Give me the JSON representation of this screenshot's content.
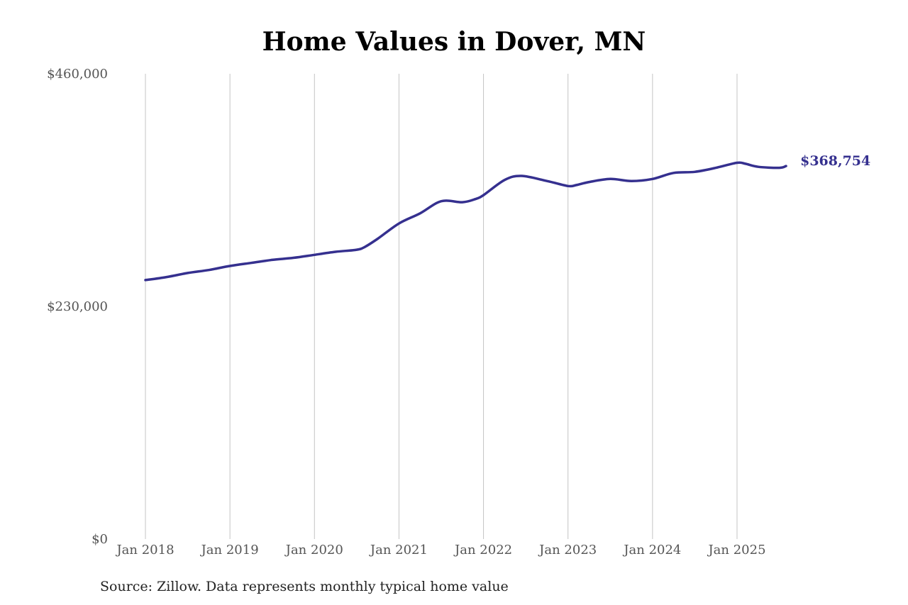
{
  "chart_data": {
    "type": "line",
    "title": "Home Values in Dover, MN",
    "xlabel": "",
    "ylabel": "",
    "ylim": [
      0,
      460000
    ],
    "y_ticks": [
      {
        "value": 0,
        "label": "$0"
      },
      {
        "value": 230000,
        "label": "$230,000"
      },
      {
        "value": 460000,
        "label": "$460,000"
      }
    ],
    "x_ticks": [
      {
        "value": 2018,
        "label": "Jan 2018"
      },
      {
        "value": 2019,
        "label": "Jan 2019"
      },
      {
        "value": 2020,
        "label": "Jan 2020"
      },
      {
        "value": 2021,
        "label": "Jan 2021"
      },
      {
        "value": 2022,
        "label": "Jan 2022"
      },
      {
        "value": 2023,
        "label": "Jan 2023"
      },
      {
        "value": 2024,
        "label": "Jan 2024"
      },
      {
        "value": 2025,
        "label": "Jan 2025"
      }
    ],
    "xlim": [
      2018,
      2025.6
    ],
    "grid": "vertical",
    "line_color": "#35308f",
    "end_label": "$368,754",
    "series": [
      {
        "x": [
          2018.0,
          2018.25,
          2018.5,
          2018.75,
          2019.0,
          2019.25,
          2019.5,
          2019.75,
          2020.0,
          2020.25,
          2020.5,
          2020.6,
          2020.75,
          2021.0,
          2021.25,
          2021.5,
          2021.75,
          2021.9,
          2022.0,
          2022.25,
          2022.45,
          2022.75,
          2023.0,
          2023.1,
          2023.25,
          2023.5,
          2023.75,
          2024.0,
          2024.25,
          2024.5,
          2024.75,
          2025.0,
          2025.1,
          2025.25,
          2025.5,
          2025.58
        ],
        "values": [
          256000,
          259000,
          263000,
          266000,
          270000,
          273000,
          276000,
          278000,
          281000,
          284000,
          286000,
          289000,
          297000,
          312000,
          322000,
          334000,
          333000,
          336000,
          340000,
          355000,
          359000,
          354000,
          349000,
          350000,
          353000,
          356000,
          354000,
          356000,
          362000,
          363000,
          367000,
          372000,
          371000,
          368000,
          367000,
          368754
        ]
      }
    ]
  },
  "source_note": "Source: Zillow. Data represents monthly typical home value"
}
